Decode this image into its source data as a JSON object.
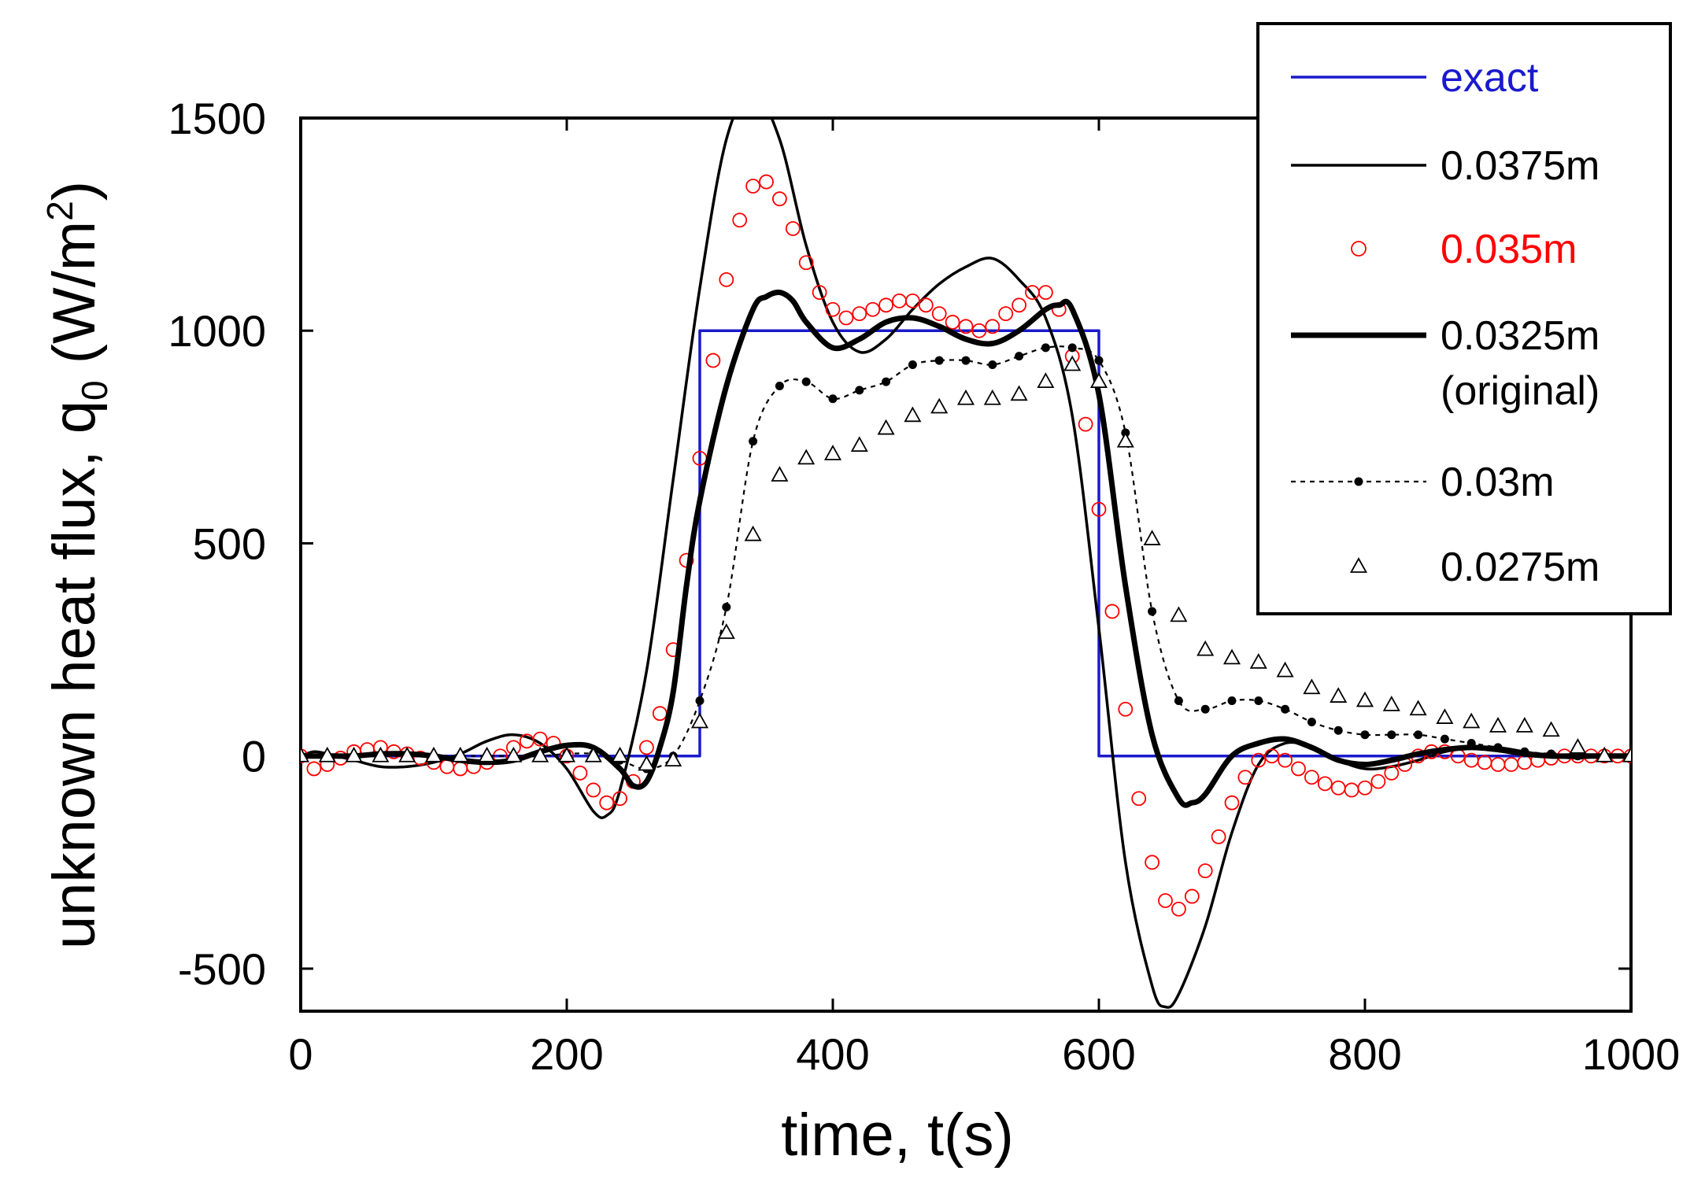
{
  "chart_data": {
    "type": "line",
    "title": "",
    "xlabel": "time, t(s)",
    "ylabel_parts": {
      "main": "unknown heat flux, q",
      "subscript": "0",
      "unit_open": " (W/m",
      "superscript": "2",
      "unit_close": ")"
    },
    "xlim": [
      0,
      1000
    ],
    "ylim": [
      -600,
      1500
    ],
    "xticks": [
      0,
      200,
      400,
      600,
      800,
      1000
    ],
    "yticks": [
      -500,
      0,
      500,
      1000,
      1500
    ],
    "xtick_labels": [
      "0",
      "200",
      "400",
      "600",
      "800",
      "1000"
    ],
    "ytick_labels": [
      "-500",
      "0",
      "500",
      "1000",
      "1500"
    ],
    "grid": false,
    "legend_position": "top-right",
    "series": [
      {
        "name": "exact",
        "style": "line",
        "color": "#1a1acc",
        "stroke": "thin",
        "x": [
          0,
          300,
          300,
          600,
          600,
          1000
        ],
        "y": [
          0,
          0,
          1000,
          1000,
          0,
          0
        ]
      },
      {
        "name": "0.0375m",
        "style": "line",
        "color": "#000000",
        "stroke": "thin",
        "x": [
          0,
          10,
          20,
          40,
          60,
          80,
          100,
          120,
          140,
          160,
          180,
          200,
          220,
          230,
          240,
          260,
          280,
          300,
          320,
          340,
          360,
          380,
          400,
          420,
          440,
          460,
          480,
          500,
          520,
          540,
          560,
          580,
          600,
          620,
          640,
          650,
          660,
          680,
          700,
          720,
          740,
          760,
          780,
          800,
          820,
          840,
          860,
          880,
          900,
          920,
          940,
          960,
          980,
          1000
        ],
        "y": [
          0,
          10,
          5,
          -10,
          -25,
          -25,
          -15,
          5,
          35,
          50,
          30,
          -30,
          -130,
          -140,
          -80,
          200,
          650,
          1100,
          1450,
          1560,
          1450,
          1200,
          1020,
          950,
          980,
          1050,
          1110,
          1150,
          1170,
          1120,
          1030,
          800,
          300,
          -250,
          -540,
          -590,
          -560,
          -400,
          -180,
          -20,
          30,
          20,
          -10,
          -30,
          -25,
          -10,
          10,
          20,
          20,
          10,
          0,
          -5,
          0,
          0
        ]
      },
      {
        "name": "0.035m",
        "style": "circle",
        "color": "#ff0000",
        "x": [
          0,
          10,
          20,
          30,
          40,
          50,
          60,
          70,
          80,
          90,
          100,
          110,
          120,
          130,
          140,
          150,
          160,
          170,
          180,
          190,
          200,
          210,
          220,
          230,
          240,
          250,
          260,
          270,
          280,
          290,
          300,
          310,
          320,
          330,
          340,
          350,
          360,
          370,
          380,
          390,
          400,
          410,
          420,
          430,
          440,
          450,
          460,
          470,
          480,
          490,
          500,
          510,
          520,
          530,
          540,
          550,
          560,
          570,
          580,
          590,
          600,
          610,
          620,
          630,
          640,
          650,
          660,
          670,
          680,
          690,
          700,
          710,
          720,
          730,
          740,
          750,
          760,
          770,
          780,
          790,
          800,
          810,
          820,
          830,
          840,
          850,
          860,
          870,
          880,
          890,
          900,
          910,
          920,
          930,
          940,
          950,
          960,
          970,
          980,
          990,
          1000
        ],
        "y": [
          0,
          -30,
          -20,
          -5,
          10,
          15,
          20,
          10,
          5,
          -5,
          -15,
          -25,
          -30,
          -25,
          -15,
          0,
          20,
          35,
          40,
          30,
          0,
          -40,
          -80,
          -110,
          -100,
          -60,
          20,
          100,
          250,
          460,
          700,
          930,
          1120,
          1260,
          1340,
          1350,
          1310,
          1240,
          1160,
          1090,
          1050,
          1030,
          1040,
          1050,
          1060,
          1070,
          1070,
          1060,
          1040,
          1020,
          1010,
          1000,
          1010,
          1040,
          1060,
          1090,
          1090,
          1050,
          940,
          780,
          580,
          340,
          110,
          -100,
          -250,
          -340,
          -360,
          -330,
          -270,
          -190,
          -110,
          -50,
          -10,
          0,
          -10,
          -30,
          -50,
          -65,
          -75,
          -80,
          -75,
          -60,
          -40,
          -20,
          0,
          10,
          10,
          0,
          -10,
          -15,
          -20,
          -20,
          -15,
          -10,
          -5,
          0,
          0,
          0,
          0,
          0,
          0
        ]
      },
      {
        "name": "0.0325m\n(original)",
        "label_lines": [
          "0.0325m",
          "(original)"
        ],
        "style": "line",
        "color": "#000000",
        "stroke": "thick",
        "x": [
          0,
          20,
          40,
          60,
          80,
          100,
          120,
          140,
          160,
          180,
          200,
          220,
          240,
          250,
          260,
          270,
          280,
          290,
          300,
          320,
          340,
          350,
          360,
          370,
          380,
          400,
          420,
          440,
          460,
          480,
          500,
          520,
          540,
          560,
          570,
          580,
          600,
          620,
          640,
          660,
          670,
          680,
          700,
          720,
          740,
          760,
          780,
          800,
          820,
          840,
          860,
          880,
          900,
          920,
          940,
          960,
          980,
          1000
        ],
        "y": [
          0,
          0,
          0,
          5,
          5,
          0,
          -10,
          -15,
          -10,
          10,
          25,
          20,
          -30,
          -70,
          -60,
          20,
          150,
          400,
          600,
          870,
          1050,
          1080,
          1090,
          1070,
          1020,
          960,
          980,
          1020,
          1030,
          1010,
          980,
          970,
          1000,
          1050,
          1060,
          1050,
          850,
          400,
          50,
          -100,
          -110,
          -90,
          0,
          30,
          40,
          20,
          -10,
          -20,
          -10,
          5,
          15,
          20,
          15,
          5,
          0,
          0,
          0,
          0
        ]
      },
      {
        "name": "0.03m",
        "style": "dotted-dot",
        "color": "#000000",
        "x": [
          0,
          20,
          40,
          60,
          80,
          100,
          120,
          140,
          160,
          180,
          200,
          220,
          240,
          260,
          280,
          300,
          320,
          340,
          360,
          380,
          400,
          420,
          440,
          460,
          480,
          500,
          520,
          540,
          560,
          580,
          600,
          620,
          640,
          660,
          680,
          700,
          720,
          740,
          760,
          780,
          800,
          820,
          840,
          860,
          880,
          900,
          920,
          940,
          960,
          980,
          1000
        ],
        "y": [
          0,
          0,
          0,
          0,
          0,
          0,
          0,
          0,
          0,
          0,
          5,
          5,
          -10,
          -30,
          0,
          130,
          350,
          740,
          870,
          880,
          840,
          860,
          880,
          920,
          930,
          930,
          920,
          940,
          960,
          960,
          930,
          760,
          340,
          130,
          110,
          130,
          130,
          110,
          80,
          60,
          50,
          50,
          50,
          40,
          30,
          20,
          10,
          5,
          0,
          0,
          0
        ]
      },
      {
        "name": "0.0275m",
        "style": "triangle",
        "color": "#000000",
        "x": [
          0,
          20,
          40,
          60,
          80,
          100,
          120,
          140,
          160,
          180,
          200,
          220,
          240,
          260,
          280,
          300,
          320,
          340,
          360,
          380,
          400,
          420,
          440,
          460,
          480,
          500,
          520,
          540,
          560,
          580,
          600,
          620,
          640,
          660,
          680,
          700,
          720,
          740,
          760,
          780,
          800,
          820,
          840,
          860,
          880,
          900,
          920,
          940,
          960,
          980,
          1000
        ],
        "y": [
          0,
          0,
          0,
          0,
          0,
          0,
          0,
          0,
          0,
          0,
          0,
          0,
          0,
          -20,
          -10,
          80,
          290,
          520,
          660,
          700,
          710,
          730,
          770,
          800,
          820,
          840,
          840,
          850,
          880,
          920,
          880,
          740,
          510,
          330,
          250,
          230,
          220,
          200,
          160,
          140,
          130,
          120,
          110,
          90,
          80,
          70,
          70,
          60,
          20,
          0,
          0
        ]
      }
    ]
  }
}
